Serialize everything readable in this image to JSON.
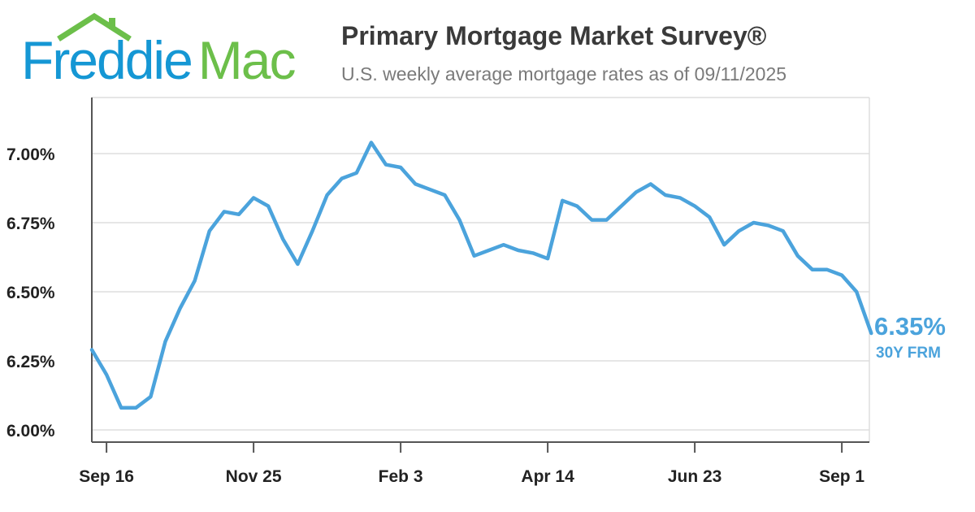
{
  "logo": {
    "word1": "Freddie",
    "word2": "Mac",
    "blue": "#1597d4",
    "green": "#6cbf4a"
  },
  "header": {
    "title": "Primary Mortgage Market Survey®",
    "subtitle": "U.S. weekly average mortgage rates as of 09/11/2025"
  },
  "colors": {
    "line": "#4ba3dc",
    "axis": "#555555",
    "grid": "#dddddd",
    "text": "#222222"
  },
  "chart_data": {
    "type": "line",
    "title": "Primary Mortgage Market Survey®",
    "subtitle": "U.S. weekly average mortgage rates as of 09/11/2025",
    "xlabel": "",
    "ylabel": "",
    "ylim": [
      5.95,
      7.25
    ],
    "yticks": [
      6.0,
      6.25,
      6.5,
      6.75,
      7.0
    ],
    "ytick_labels": [
      "6.00%",
      "6.25%",
      "6.50%",
      "6.75%",
      "7.00%"
    ],
    "xticks": [
      {
        "index": 1,
        "label": "Sep 16"
      },
      {
        "index": 11,
        "label": "Nov 25"
      },
      {
        "index": 21,
        "label": "Feb 3"
      },
      {
        "index": 31,
        "label": "Apr 14"
      },
      {
        "index": 41,
        "label": "Jun 23"
      },
      {
        "index": 51,
        "label": "Sep 1"
      }
    ],
    "grid": "horizontal",
    "legend": "none",
    "series": [
      {
        "name": "30Y FRM",
        "values": [
          6.29,
          6.2,
          6.08,
          6.08,
          6.12,
          6.32,
          6.44,
          6.54,
          6.72,
          6.79,
          6.78,
          6.84,
          6.81,
          6.69,
          6.6,
          6.72,
          6.85,
          6.91,
          6.93,
          7.04,
          6.96,
          6.95,
          6.89,
          6.87,
          6.85,
          6.76,
          6.63,
          6.65,
          6.67,
          6.65,
          6.64,
          6.62,
          6.83,
          6.81,
          6.76,
          6.76,
          6.81,
          6.86,
          6.89,
          6.85,
          6.84,
          6.81,
          6.77,
          6.67,
          6.72,
          6.75,
          6.74,
          6.72,
          6.63,
          6.58,
          6.58,
          6.56,
          6.5,
          6.35
        ]
      }
    ],
    "last_value_label": "6.35%",
    "last_series_label": "30Y FRM"
  }
}
